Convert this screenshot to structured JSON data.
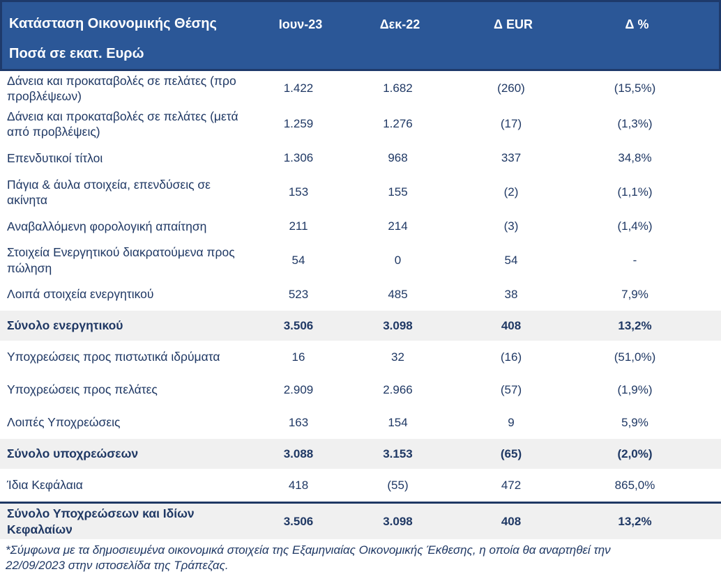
{
  "header": {
    "title": "Κατάσταση Οικονομικής Θέσης",
    "subtitle": "Ποσά σε εκατ. Ευρώ",
    "columns": [
      "Ιουν-23",
      "Δεκ-22",
      "Δ EUR",
      "Δ %"
    ]
  },
  "rows": [
    {
      "label": "Δάνεια και προκαταβολές σε πελάτες (προ προβλέψεων)",
      "values": [
        "1.422",
        "1.682",
        "(260)",
        "(15,5%)"
      ],
      "total": false,
      "grand": false
    },
    {
      "label": "Δάνεια και προκαταβολές σε πελάτες (μετά από προβλέψεις)",
      "values": [
        "1.259",
        "1.276",
        "(17)",
        "(1,3%)"
      ],
      "total": false,
      "grand": false
    },
    {
      "label": "Επενδυτικοί τίτλοι",
      "values": [
        "1.306",
        "968",
        "337",
        "34,8%"
      ],
      "total": false,
      "grand": false
    },
    {
      "label": "Πάγια & άυλα στοιχεία, επενδύσεις σε ακίνητα",
      "values": [
        "153",
        "155",
        "(2)",
        "(1,1%)"
      ],
      "total": false,
      "grand": false
    },
    {
      "label": "Αναβαλλόμενη φορολογική απαίτηση",
      "values": [
        "211",
        "214",
        "(3)",
        "(1,4%)"
      ],
      "total": false,
      "grand": false
    },
    {
      "label": "Στοιχεία Ενεργητικού διακρατούμενα προς πώληση",
      "values": [
        "54",
        "0",
        "54",
        "-"
      ],
      "total": false,
      "grand": false
    },
    {
      "label": "Λοιπά στοιχεία ενεργητικού",
      "values": [
        "523",
        "485",
        "38",
        "7,9%"
      ],
      "total": false,
      "grand": false
    },
    {
      "label": "Σύνολο ενεργητικού",
      "values": [
        "3.506",
        "3.098",
        "408",
        "13,2%"
      ],
      "total": true,
      "grand": false
    },
    {
      "label": "Υποχρεώσεις προς πιστωτικά ιδρύματα",
      "values": [
        "16",
        "32",
        "(16)",
        "(51,0%)"
      ],
      "total": false,
      "grand": false
    },
    {
      "label": "Υποχρεώσεις προς πελάτες",
      "values": [
        "2.909",
        "2.966",
        "(57)",
        "(1,9%)"
      ],
      "total": false,
      "grand": false
    },
    {
      "label": "Λοιπές Υποχρεώσεις",
      "values": [
        "163",
        "154",
        "9",
        "5,9%"
      ],
      "total": false,
      "grand": false
    },
    {
      "label": "Σύνολο υποχρεώσεων",
      "values": [
        "3.088",
        "3.153",
        "(65)",
        "(2,0%)"
      ],
      "total": true,
      "grand": false
    },
    {
      "label": "Ίδια Κεφάλαια",
      "values": [
        "418",
        "(55)",
        "472",
        "865,0%"
      ],
      "total": false,
      "grand": false
    },
    {
      "label": "Σύνολο Υποχρεώσεων και Ιδίων Κεφαλαίων",
      "values": [
        "3.506",
        "3.098",
        "408",
        "13,2%"
      ],
      "total": true,
      "grand": true
    }
  ],
  "footnote": "*Σύμφωνα με τα δημοσιευμένα οικονομικά στοιχεία της Εξαμηνιαίας Οικονομικής Έκθεσης, η οποία θα αναρτηθεί την 22/09/2023 στην ιστοσελίδα της Τράπεζας.",
  "colors": {
    "header_bg": "#2B5797",
    "header_border": "#1E3A6B",
    "navy": "#1F3864",
    "total_bg": "#F0F0F0"
  }
}
